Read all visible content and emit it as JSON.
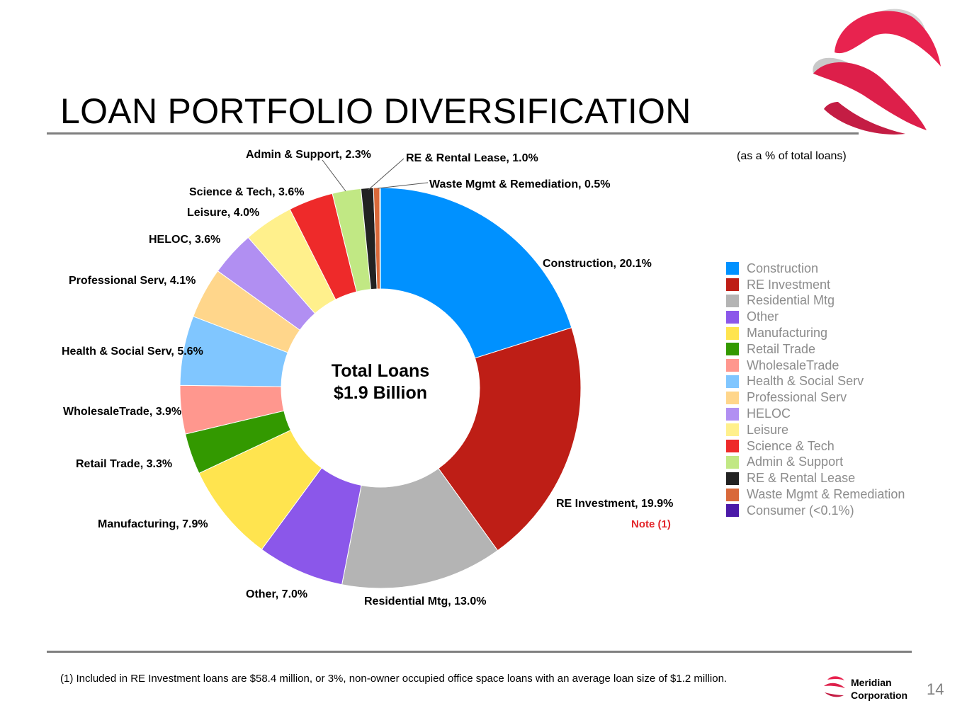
{
  "page": {
    "title": "LOAN PORTFOLIO DIVERSIFICATION",
    "subtitle": "(as a % of total loans)",
    "note_label": "Note (1)",
    "footnote": "(1) Included in RE Investment loans are $58.4 million, or 3%, non-owner occupied office space loans with an average loan size of $1.2 million.",
    "page_number": "14",
    "brand_line1": "Meridian",
    "brand_line2": "Corporation"
  },
  "chart_data": {
    "type": "pie",
    "variant": "donut",
    "center_label_line1": "Total Loans",
    "center_label_line2": "$1.9 Billion",
    "unit": "%",
    "slices": [
      {
        "name": "Construction",
        "value": 20.1,
        "label": "Construction, 20.1%",
        "color": "#0091ff"
      },
      {
        "name": "RE Investment",
        "value": 19.9,
        "label": "RE Investment, 19.9%",
        "color": "#be1e16"
      },
      {
        "name": "Residential Mtg",
        "value": 13.0,
        "label": "Residential Mtg, 13.0%",
        "color": "#b4b4b4"
      },
      {
        "name": "Other",
        "value": 7.0,
        "label": "Other, 7.0%",
        "color": "#8b57ea"
      },
      {
        "name": "Manufacturing",
        "value": 7.9,
        "label": "Manufacturing, 7.9%",
        "color": "#ffe44f"
      },
      {
        "name": "Retail Trade",
        "value": 3.3,
        "label": "Retail Trade, 3.3%",
        "color": "#339900"
      },
      {
        "name": "WholesaleTrade",
        "value": 3.9,
        "label": "WholesaleTrade, 3.9%",
        "color": "#ff978e"
      },
      {
        "name": "Health & Social Serv",
        "value": 5.6,
        "label": "Health & Social Serv, 5.6%",
        "color": "#80c6ff"
      },
      {
        "name": "Professional Serv",
        "value": 4.1,
        "label": "Professional Serv, 4.1%",
        "color": "#ffd68b"
      },
      {
        "name": "HELOC",
        "value": 3.6,
        "label": "HELOC, 3.6%",
        "color": "#b18ff2"
      },
      {
        "name": "Leisure",
        "value": 4.0,
        "label": "Leisure, 4.0%",
        "color": "#fff08c"
      },
      {
        "name": "Science & Tech",
        "value": 3.6,
        "label": "Science & Tech, 3.6%",
        "color": "#ee2a2a"
      },
      {
        "name": "Admin & Support",
        "value": 2.3,
        "label": "Admin & Support, 2.3%",
        "color": "#c1e884"
      },
      {
        "name": "RE & Rental Lease",
        "value": 1.0,
        "label": "RE & Rental Lease, 1.0%",
        "color": "#222222"
      },
      {
        "name": "Waste Mgmt & Remediation",
        "value": 0.5,
        "label": "Waste Mgmt & Remediation, 0.5%",
        "color": "#d9693a"
      },
      {
        "name": "Consumer (<0.1%)",
        "value": 0.05,
        "label": "",
        "color": "#4b1aa8"
      }
    ],
    "legend": [
      "Construction",
      "RE Investment",
      "Residential Mtg",
      "Other",
      "Manufacturing",
      "Retail Trade",
      "WholesaleTrade",
      "Health & Social Serv",
      "Professional Serv",
      "HELOC",
      "Leisure",
      "Science & Tech",
      "Admin & Support",
      "RE & Rental Lease",
      "Waste Mgmt & Remediation",
      "Consumer (<0.1%)"
    ],
    "legend_position": "right"
  }
}
